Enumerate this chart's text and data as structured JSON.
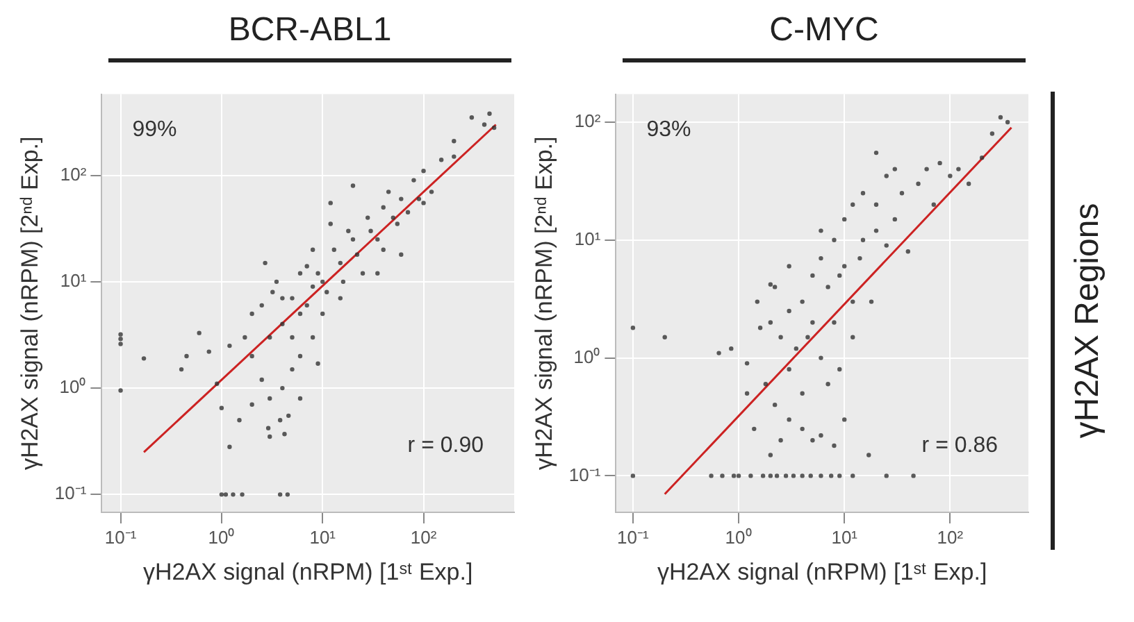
{
  "chart_data": [
    {
      "type": "scatter",
      "title": "BCR-ABL1",
      "xlabel": "γH2AX signal (nRPM) [1ˢᵗ Exp.]",
      "ylabel": "γH2AX signal (nRPM) [2ⁿᵈ Exp.]",
      "log": "xy",
      "grid": true,
      "legend": false,
      "xlim": [
        0.065,
        790
      ],
      "ylim": [
        0.068,
        580
      ],
      "xticks": [
        {
          "value": 0.1,
          "label": "10⁻¹"
        },
        {
          "value": 1,
          "label": "10⁰"
        },
        {
          "value": 10,
          "label": "10¹"
        },
        {
          "value": 100,
          "label": "10²"
        }
      ],
      "yticks": [
        {
          "value": 0.1,
          "label": "10⁻¹"
        },
        {
          "value": 1,
          "label": "10⁰"
        },
        {
          "value": 10,
          "label": "10¹"
        },
        {
          "value": 100,
          "label": "10²"
        }
      ],
      "annotations": [
        "99%",
        "r = 0.90"
      ],
      "series": [
        {
          "type": "scatter",
          "marker": "circle",
          "color": "#333333",
          "x": [
            0.1,
            0.1,
            0.1,
            0.1,
            0.17,
            0.4,
            0.45,
            0.6,
            0.75,
            0.9,
            1.0,
            1.2,
            1.1,
            1.3,
            1.6,
            1.0,
            3.8,
            4.5,
            2.9,
            3.8,
            4.6,
            3,
            4.2,
            2,
            2.7,
            3.2,
            12,
            12,
            20,
            7,
            5,
            6,
            8,
            10,
            15,
            20,
            30,
            40,
            60,
            80,
            100,
            150,
            200,
            300,
            400,
            450,
            500,
            200,
            120,
            50,
            40,
            25,
            15,
            10,
            8,
            6,
            5,
            4,
            3,
            2.5,
            2,
            3,
            4,
            5,
            7,
            9,
            11,
            13,
            16,
            18,
            22,
            28,
            35,
            45,
            55,
            70,
            90,
            2.5,
            3.5,
            6,
            8,
            1.5,
            2,
            6,
            9,
            1.7,
            1.2,
            4,
            35,
            60,
            100
          ],
          "values": [
            3.2,
            2.9,
            2.6,
            0.95,
            1.9,
            1.5,
            2,
            3.3,
            2.2,
            1.1,
            0.65,
            0.28,
            0.1,
            0.1,
            0.1,
            0.1,
            0.1,
            0.1,
            0.42,
            0.5,
            0.55,
            0.35,
            0.37,
            5,
            15,
            8,
            55,
            35,
            80,
            14,
            7,
            5,
            9,
            10,
            15,
            25,
            30,
            50,
            60,
            90,
            110,
            140,
            150,
            350,
            300,
            380,
            280,
            210,
            70,
            40,
            20,
            12,
            7,
            5,
            3,
            2,
            1.5,
            1,
            0.8,
            1.2,
            2,
            3,
            4,
            3,
            6,
            12,
            8,
            20,
            10,
            30,
            18,
            40,
            25,
            70,
            35,
            45,
            60,
            6,
            10,
            12,
            20,
            0.5,
            0.7,
            0.8,
            1.7,
            3,
            2.5,
            7,
            12,
            18,
            55
          ]
        },
        {
          "type": "line",
          "color": "#cc2222",
          "x": [
            0.17,
            520
          ],
          "values": [
            0.25,
            300
          ]
        }
      ]
    },
    {
      "type": "scatter",
      "title": "C-MYC",
      "xlabel": "γH2AX signal (nRPM) [1ˢᵗ Exp.]",
      "ylabel": "γH2AX signal (nRPM) [2ⁿᵈ Exp.]",
      "y2label": "γH2AX Regions",
      "log": "xy",
      "grid": true,
      "legend": false,
      "xlim": [
        0.069,
        550
      ],
      "ylim": [
        0.049,
        173
      ],
      "xticks": [
        {
          "value": 0.1,
          "label": "10⁻¹"
        },
        {
          "value": 1,
          "label": "10⁰"
        },
        {
          "value": 10,
          "label": "10¹"
        },
        {
          "value": 100,
          "label": "10²"
        }
      ],
      "yticks": [
        {
          "value": 0.1,
          "label": "10⁻¹"
        },
        {
          "value": 1,
          "label": "10⁰"
        },
        {
          "value": 10,
          "label": "10¹"
        },
        {
          "value": 100,
          "label": "10²"
        }
      ],
      "annotations": [
        "93%",
        "r = 0.86"
      ],
      "series": [
        {
          "type": "scatter",
          "marker": "circle",
          "color": "#333333",
          "x": [
            0.1,
            0.1,
            0.2,
            0.65,
            0.85,
            1.2,
            0.9,
            0.55,
            0.7,
            1,
            1.3,
            1.7,
            2,
            2.3,
            2.8,
            3.3,
            4,
            4.8,
            6,
            7.5,
            9,
            12,
            25,
            45,
            1.5,
            2,
            2.5,
            3,
            3,
            3.5,
            4,
            4,
            5,
            5,
            6,
            6,
            7,
            8,
            8,
            10,
            10,
            12,
            15,
            15,
            20,
            20,
            25,
            30,
            35,
            40,
            50,
            60,
            70,
            80,
            100,
            120,
            150,
            200,
            250,
            300,
            350,
            3,
            4,
            5,
            6,
            2,
            1.4,
            2.5,
            8,
            17,
            10,
            1.2,
            1.8,
            2.2,
            1.6,
            2.2,
            4.5,
            7,
            9,
            12,
            18,
            25,
            30,
            12,
            9,
            14,
            20,
            2,
            6,
            3
          ],
          "values": [
            1.8,
            0.1,
            1.5,
            1.1,
            1.2,
            0.5,
            0.1,
            0.1,
            0.1,
            0.1,
            0.1,
            0.1,
            0.1,
            0.1,
            0.1,
            0.1,
            0.1,
            0.1,
            0.1,
            0.1,
            0.1,
            0.1,
            0.1,
            0.1,
            3,
            2,
            1.5,
            0.8,
            2.5,
            1.2,
            3,
            0.5,
            5,
            2,
            1,
            7,
            4,
            10,
            2,
            6,
            15,
            3,
            10,
            25,
            12,
            20,
            35,
            15,
            25,
            8,
            30,
            40,
            20,
            45,
            35,
            40,
            30,
            50,
            80,
            110,
            100,
            0.3,
            0.25,
            0.2,
            0.22,
            0.15,
            0.25,
            0.2,
            0.18,
            0.15,
            0.3,
            0.9,
            0.6,
            4,
            1.8,
            0.4,
            1.5,
            0.6,
            0.8,
            1.5,
            3,
            9,
            40,
            20,
            5,
            7,
            55,
            4.2,
            12,
            6
          ]
        },
        {
          "type": "line",
          "color": "#cc2222",
          "x": [
            0.2,
            380
          ],
          "values": [
            0.07,
            90
          ]
        }
      ]
    }
  ]
}
